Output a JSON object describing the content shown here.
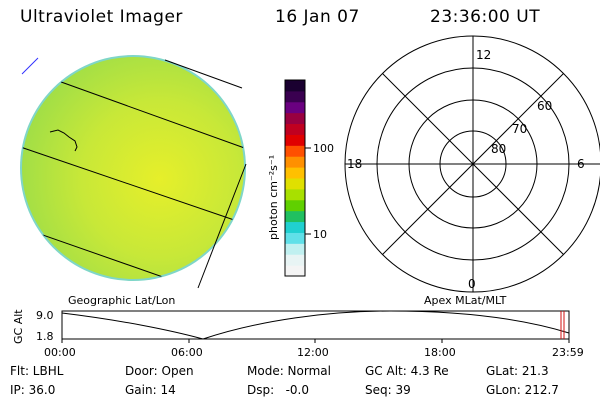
{
  "header": {
    "instrument": "Ultraviolet Imager",
    "date": "16 Jan 07",
    "time": "23:36:00 UT"
  },
  "colorbar": {
    "unit_label": "photon cm⁻²s⁻¹",
    "tick_100": "100",
    "tick_10": "10",
    "colors": [
      "#1a0030",
      "#3a0050",
      "#6a0080",
      "#990040",
      "#c00020",
      "#e00000",
      "#ff5000",
      "#ff9000",
      "#ffc000",
      "#e0e000",
      "#a8e000",
      "#60d000",
      "#20c060",
      "#20d0d0",
      "#60e0e8",
      "#c0f0f0",
      "#e8f4f4",
      "#f4f4f4"
    ]
  },
  "panels": {
    "left_label": "Geographic Lat/Lon",
    "right_label": "Apex MLat/MLT"
  },
  "polar": {
    "mlt_labels": {
      "top": "12",
      "left": "18",
      "right": "6",
      "bottom": "0"
    },
    "lat_labels": [
      "60",
      "70",
      "80"
    ]
  },
  "timeline": {
    "ylabel": "GC Alt",
    "ymax": "9.0",
    "ymin": "1.8",
    "ticks": [
      "00:00",
      "06:00",
      "12:00",
      "18:00",
      "23:59"
    ]
  },
  "footer": {
    "row1": [
      {
        "key": "Flt: LBHL"
      },
      {
        "key": "Door: Open"
      },
      {
        "key": "Mode: Normal"
      },
      {
        "key": "GC Alt: 4.3 Re"
      },
      {
        "key": "GLat: 21.3"
      }
    ],
    "row2": [
      {
        "key": "IP: 36.0"
      },
      {
        "key": "Gain: 14"
      },
      {
        "key": "Dsp:   -0.0"
      },
      {
        "key": "Seq: 39"
      },
      {
        "key": "GLon: 212.7"
      }
    ]
  }
}
